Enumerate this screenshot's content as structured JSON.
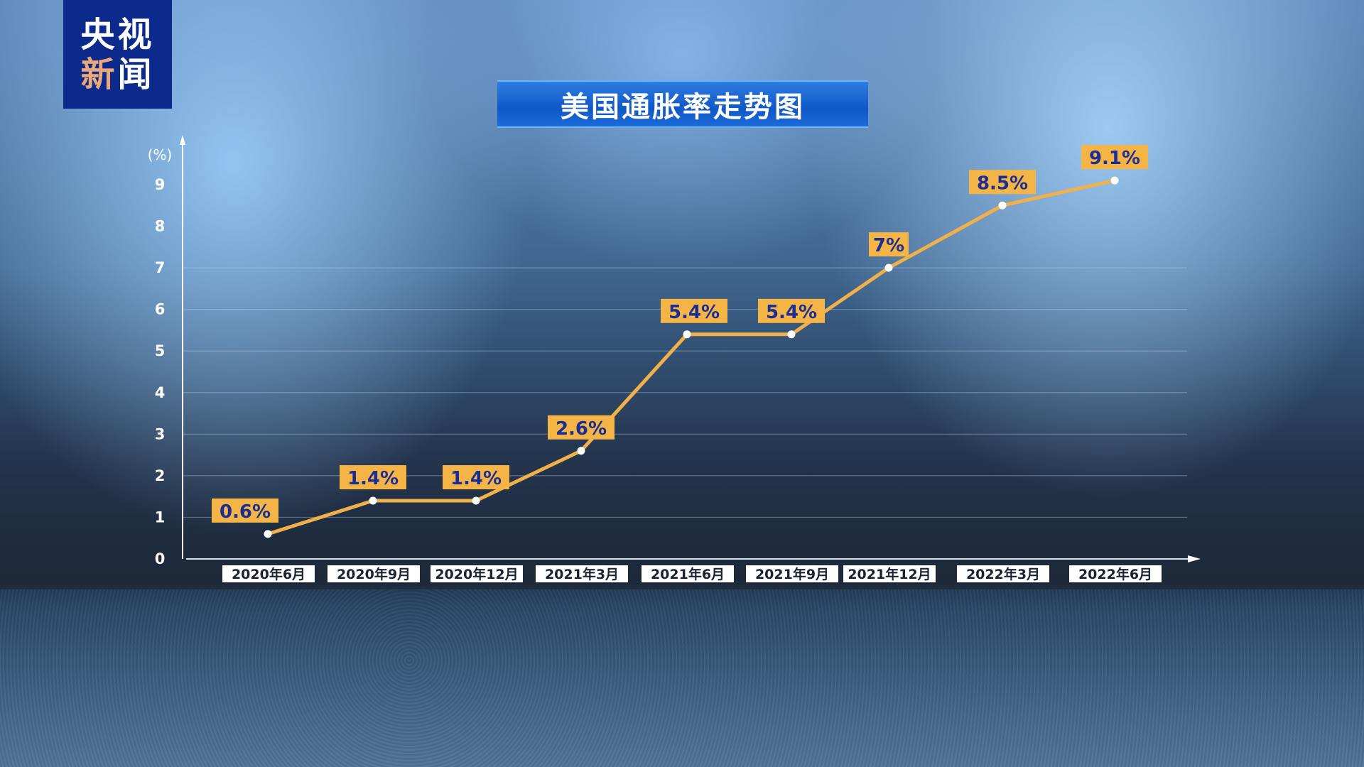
{
  "logo": {
    "line1": "央视",
    "line2a": "新",
    "line2b": "闻"
  },
  "chart_data": {
    "type": "line",
    "title": "美国通胀率走势图",
    "ylabel": "(%)",
    "ylim": [
      0,
      9
    ],
    "yticks": [
      "0",
      "1",
      "2",
      "3",
      "4",
      "5",
      "6",
      "7",
      "8",
      "9"
    ],
    "grid": "horizontal lines 1-7",
    "categories": [
      "2020年6月",
      "2020年9月",
      "2020年12月",
      "2021年3月",
      "2021年6月",
      "2021年9月",
      "2021年12月",
      "2022年3月",
      "2022年6月"
    ],
    "values": [
      0.6,
      1.4,
      1.4,
      2.6,
      5.4,
      5.4,
      7,
      8.5,
      9.1
    ],
    "data_labels": [
      "0.6%",
      "1.4%",
      "1.4%",
      "2.6%",
      "5.4%",
      "5.4%",
      "7%",
      "8.5%",
      "9.1%"
    ],
    "colors": {
      "line": "#f0b04a",
      "label_bg": "#f5b446",
      "label_text": "#1a2f95",
      "point": "#ffffff"
    }
  }
}
